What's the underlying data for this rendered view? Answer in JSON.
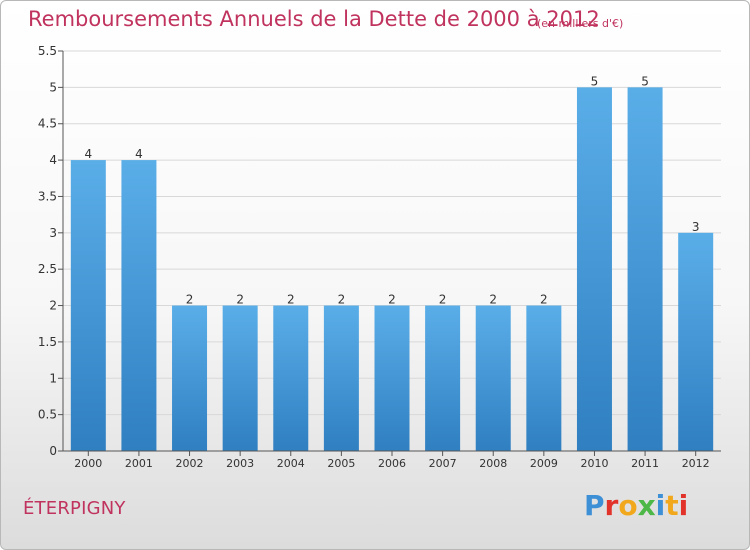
{
  "title": "Remboursements Annuels de la Dette de 2000 à 2012",
  "unit": "(en milliers d'€)",
  "place": "ÉTERPIGNY",
  "logo": {
    "letters": [
      "P",
      "r",
      "o",
      "x",
      "i",
      "t",
      "i"
    ],
    "colors": [
      "#3d8fd6",
      "#e2332a",
      "#f2a81d",
      "#4db848",
      "#3d8fd6",
      "#f2a81d",
      "#e2332a"
    ]
  },
  "colors": {
    "title": "#c0335e",
    "bar_top": "#5aaee8",
    "bar_bottom": "#2f7fc1",
    "axis": "#555555",
    "grid": "#d8d8d8"
  },
  "chart_data": {
    "type": "bar",
    "categories": [
      "2000",
      "2001",
      "2002",
      "2003",
      "2004",
      "2005",
      "2006",
      "2007",
      "2008",
      "2009",
      "2010",
      "2011",
      "2012"
    ],
    "values": [
      4,
      4,
      2,
      2,
      2,
      2,
      2,
      2,
      2,
      2,
      5,
      5,
      3
    ],
    "data_labels": [
      "4",
      "4",
      "2",
      "2",
      "2",
      "2",
      "2",
      "2",
      "2",
      "2",
      "5",
      "5",
      "3"
    ],
    "ylim": [
      0,
      5.5
    ],
    "yticks": [
      "0",
      "0.5",
      "1",
      "1.5",
      "2",
      "2.5",
      "3",
      "3.5",
      "4",
      "4.5",
      "5",
      "5.5"
    ],
    "ytick_values": [
      0,
      0.5,
      1,
      1.5,
      2,
      2.5,
      3,
      3.5,
      4,
      4.5,
      5,
      5.5
    ],
    "xlabel": "",
    "ylabel": "",
    "grid": true
  }
}
